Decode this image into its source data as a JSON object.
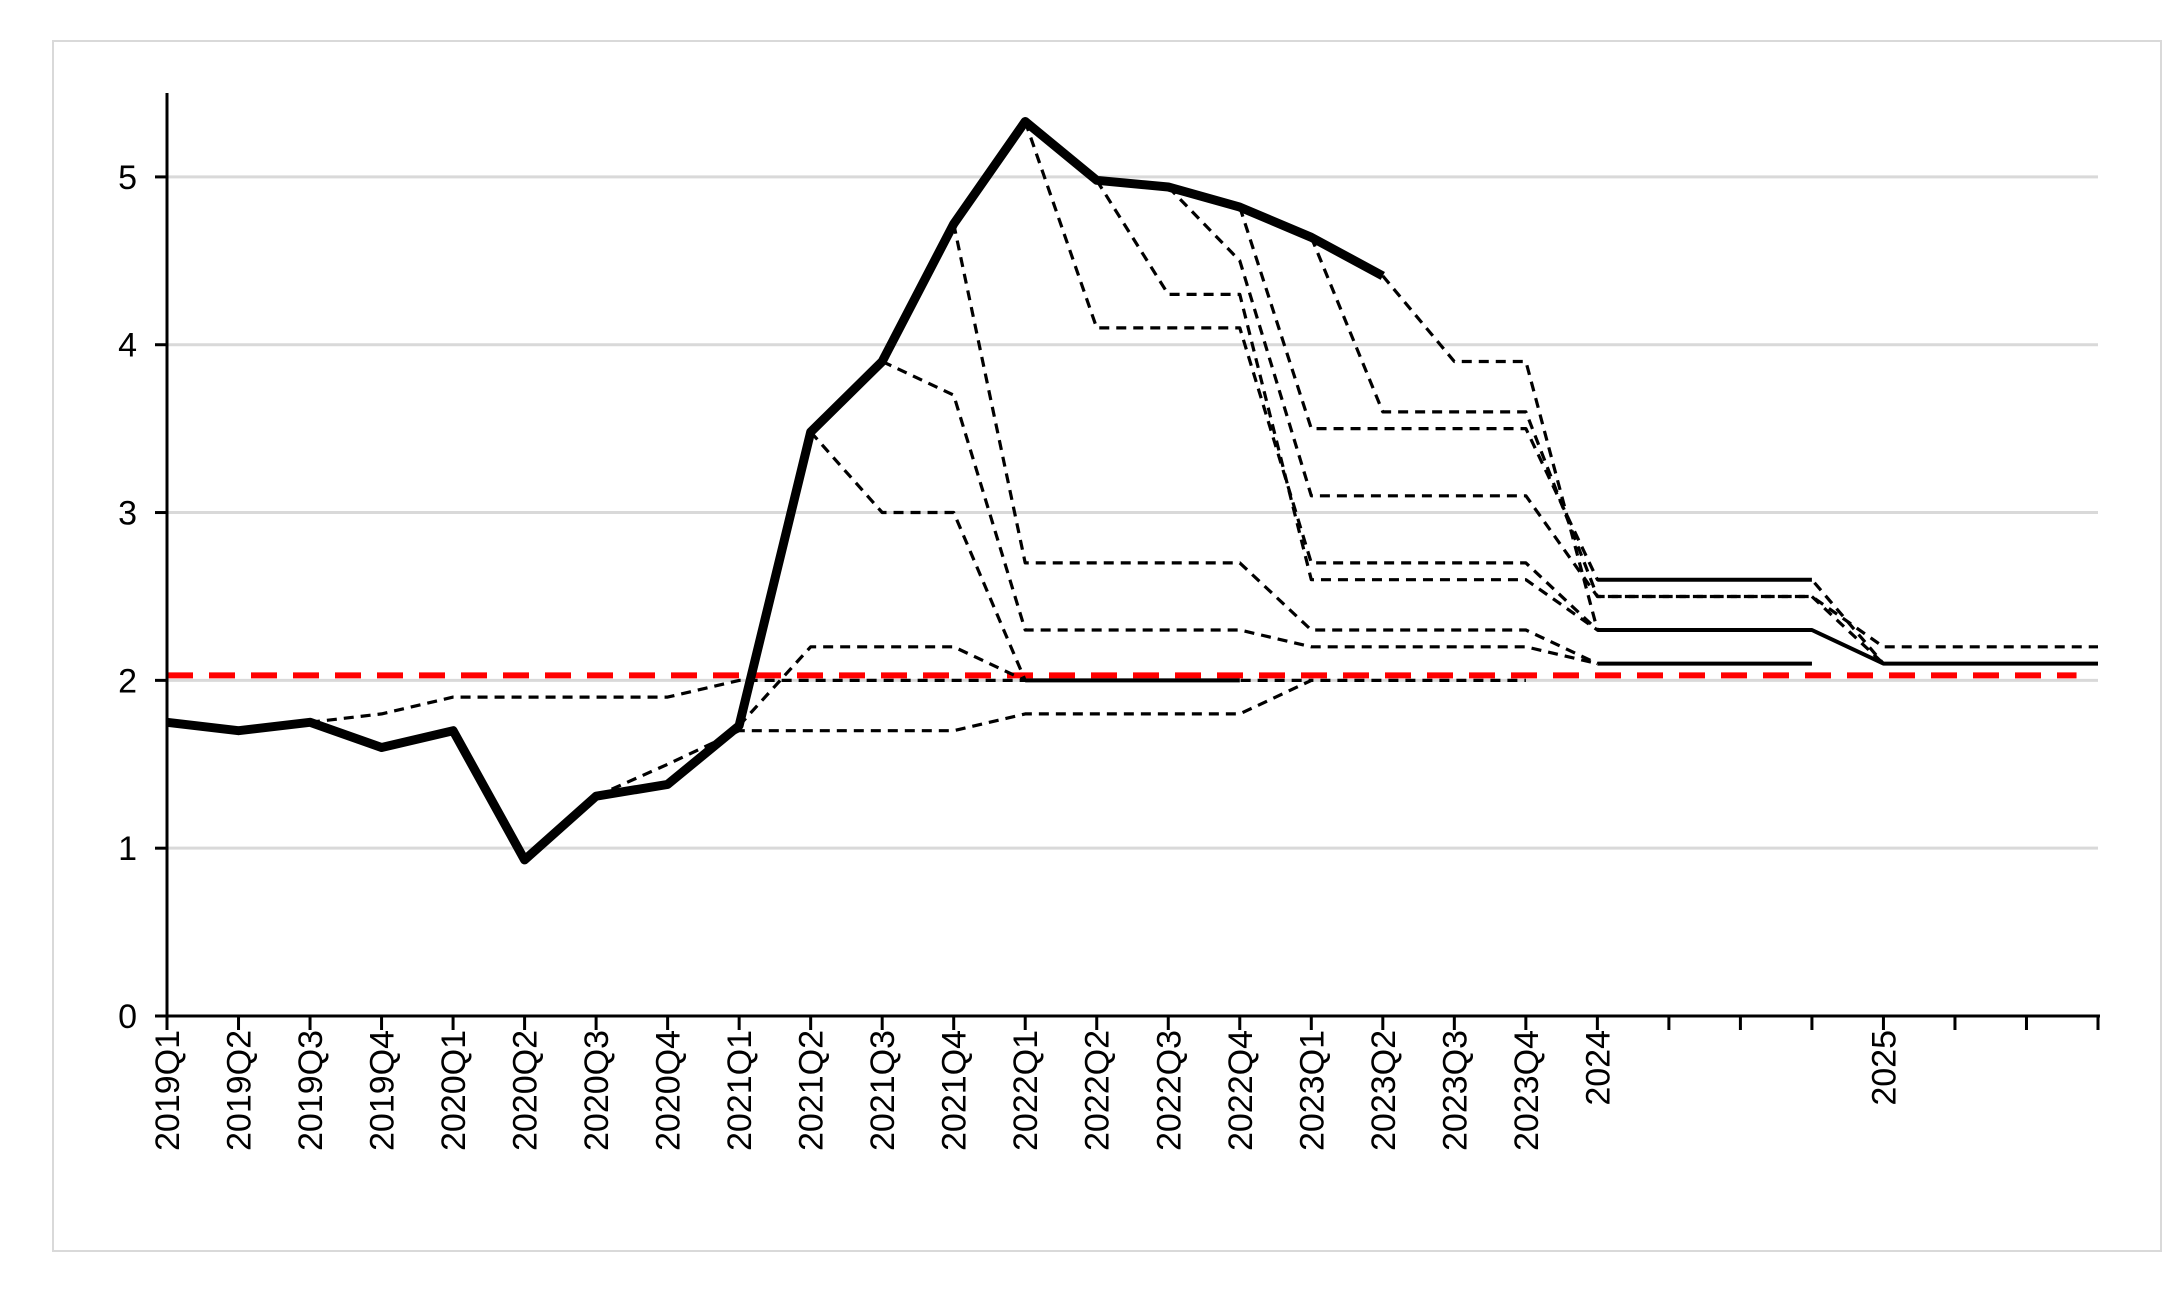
{
  "chart_data": {
    "type": "line",
    "title": "",
    "xlabel": "",
    "ylabel": "",
    "categories": [
      "2019Q1",
      "2019Q2",
      "2019Q3",
      "2019Q4",
      "2020Q1",
      "2020Q2",
      "2020Q3",
      "2020Q4",
      "2021Q1",
      "2021Q2",
      "2021Q3",
      "2021Q4",
      "2022Q1",
      "2022Q2",
      "2022Q3",
      "2022Q4",
      "2023Q1",
      "2023Q2",
      "2023Q3",
      "2023Q4",
      "2024",
      "",
      "",
      "",
      "2025",
      "",
      "",
      ""
    ],
    "ylim": [
      0,
      5.5
    ],
    "yticks": [
      0,
      1,
      2,
      3,
      4,
      5
    ],
    "grid": true,
    "legend": "none",
    "colors": {
      "actual": "#000000",
      "forecast": "#000000",
      "target": "#ff0000",
      "grid": "#d9d9d9"
    },
    "series": [
      {
        "style": "thick-solid",
        "values": [
          1.75,
          1.7,
          1.75,
          1.6,
          1.7,
          0.93,
          1.31,
          1.38,
          1.73,
          3.48,
          3.9,
          4.72,
          5.33,
          4.98,
          4.94,
          4.82,
          4.64,
          4.41,
          null,
          null,
          null,
          null,
          null,
          null,
          null,
          null,
          null,
          null
        ]
      },
      {
        "style": "dashed",
        "values": [
          null,
          null,
          1.75,
          1.8,
          1.9,
          1.9,
          1.9,
          1.9,
          2.0,
          2.0,
          2.0,
          2.0,
          2.0,
          2.0,
          2.0,
          2.0,
          2.0,
          null,
          null,
          null,
          null,
          null,
          null,
          null,
          null,
          null,
          null,
          null
        ]
      },
      {
        "style": "dashed",
        "values": [
          null,
          null,
          null,
          null,
          null,
          null,
          1.31,
          1.5,
          1.7,
          1.7,
          1.7,
          1.7,
          1.8,
          1.8,
          1.8,
          1.8,
          2.0,
          2.0,
          2.0,
          2.0,
          null,
          null,
          null,
          null,
          null,
          null,
          null,
          null
        ]
      },
      {
        "style": "dashed",
        "values": [
          null,
          null,
          null,
          null,
          null,
          null,
          null,
          null,
          1.73,
          2.2,
          2.2,
          2.2,
          2.0,
          2.0,
          2.0,
          2.0,
          null,
          null,
          null,
          null,
          null,
          null,
          null,
          null,
          null,
          null,
          null,
          null
        ]
      },
      {
        "style": "dashed",
        "values": [
          null,
          null,
          null,
          null,
          null,
          null,
          null,
          null,
          null,
          3.48,
          3.0,
          3.0,
          2.0,
          2.0,
          2.0,
          2.0,
          null,
          null,
          null,
          null,
          null,
          null,
          null,
          null,
          null,
          null,
          null,
          null
        ]
      },
      {
        "style": "dashed",
        "values": [
          null,
          null,
          null,
          null,
          null,
          null,
          null,
          null,
          null,
          null,
          3.9,
          3.7,
          2.3,
          2.3,
          2.3,
          2.3,
          2.2,
          2.2,
          2.2,
          2.2,
          2.1,
          2.1,
          2.1,
          2.1,
          null,
          null,
          null,
          null
        ]
      },
      {
        "style": "dashed",
        "values": [
          null,
          null,
          null,
          null,
          null,
          null,
          null,
          null,
          null,
          null,
          null,
          4.72,
          2.7,
          2.7,
          2.7,
          2.7,
          2.3,
          2.3,
          2.3,
          2.3,
          2.1,
          null,
          null,
          null,
          null,
          null,
          null,
          null
        ]
      },
      {
        "style": "dashed",
        "values": [
          null,
          null,
          null,
          null,
          null,
          null,
          null,
          null,
          null,
          null,
          null,
          null,
          5.33,
          4.1,
          4.1,
          4.1,
          2.7,
          2.7,
          2.7,
          2.7,
          2.3,
          2.3,
          2.3,
          2.3,
          2.1,
          2.1,
          2.1,
          2.1
        ]
      },
      {
        "style": "dashed",
        "values": [
          null,
          null,
          null,
          null,
          null,
          null,
          null,
          null,
          null,
          null,
          null,
          null,
          null,
          4.98,
          4.3,
          4.3,
          2.6,
          2.6,
          2.6,
          2.6,
          2.3,
          2.3,
          2.3,
          2.3,
          2.1,
          2.1,
          2.1,
          2.1
        ]
      },
      {
        "style": "dashed",
        "values": [
          null,
          null,
          null,
          null,
          null,
          null,
          null,
          null,
          null,
          null,
          null,
          null,
          null,
          null,
          4.94,
          4.5,
          3.1,
          3.1,
          3.1,
          3.1,
          2.5,
          2.5,
          2.5,
          2.5,
          2.1,
          2.1,
          2.1,
          2.1
        ]
      },
      {
        "style": "dashed",
        "values": [
          null,
          null,
          null,
          null,
          null,
          null,
          null,
          null,
          null,
          null,
          null,
          null,
          null,
          null,
          null,
          4.82,
          3.5,
          3.5,
          3.5,
          3.5,
          2.6,
          2.6,
          2.6,
          2.6,
          2.1,
          2.1,
          2.1,
          2.1
        ]
      },
      {
        "style": "dashed",
        "values": [
          null,
          null,
          null,
          null,
          null,
          null,
          null,
          null,
          null,
          null,
          null,
          null,
          null,
          null,
          null,
          null,
          4.64,
          3.6,
          3.6,
          3.6,
          2.5,
          2.5,
          2.5,
          2.5,
          2.2,
          2.2,
          2.2,
          2.2
        ]
      },
      {
        "style": "dashed",
        "values": [
          null,
          null,
          null,
          null,
          null,
          null,
          null,
          null,
          null,
          null,
          null,
          null,
          null,
          null,
          null,
          null,
          null,
          4.41,
          3.9,
          3.9,
          2.3,
          2.3,
          2.3,
          2.3,
          2.1,
          2.1,
          2.1,
          2.1
        ]
      },
      {
        "style": "solid",
        "values": [
          null,
          null,
          null,
          null,
          null,
          null,
          null,
          null,
          null,
          null,
          null,
          null,
          null,
          null,
          null,
          null,
          null,
          null,
          null,
          null,
          2.6,
          2.6,
          2.6,
          2.6,
          null,
          null,
          null,
          null
        ]
      },
      {
        "style": "solid",
        "values": [
          null,
          null,
          null,
          null,
          null,
          null,
          null,
          null,
          null,
          null,
          null,
          null,
          null,
          null,
          null,
          null,
          null,
          null,
          null,
          null,
          2.3,
          2.3,
          2.3,
          2.3,
          2.1,
          2.1,
          2.1,
          2.1
        ]
      },
      {
        "style": "solid",
        "values": [
          null,
          null,
          null,
          null,
          null,
          null,
          null,
          null,
          null,
          null,
          null,
          null,
          null,
          null,
          null,
          null,
          null,
          null,
          null,
          null,
          2.1,
          2.1,
          2.1,
          2.1,
          null,
          null,
          null,
          null
        ]
      },
      {
        "style": "solid",
        "values": [
          null,
          null,
          null,
          null,
          null,
          null,
          null,
          null,
          null,
          null,
          null,
          null,
          2.0,
          2.0,
          2.0,
          2.0,
          null,
          null,
          null,
          null,
          null,
          null,
          null,
          null,
          null,
          null,
          null,
          null
        ]
      }
    ],
    "reference_line": {
      "value": 2.03,
      "style": "red-dashed"
    }
  }
}
